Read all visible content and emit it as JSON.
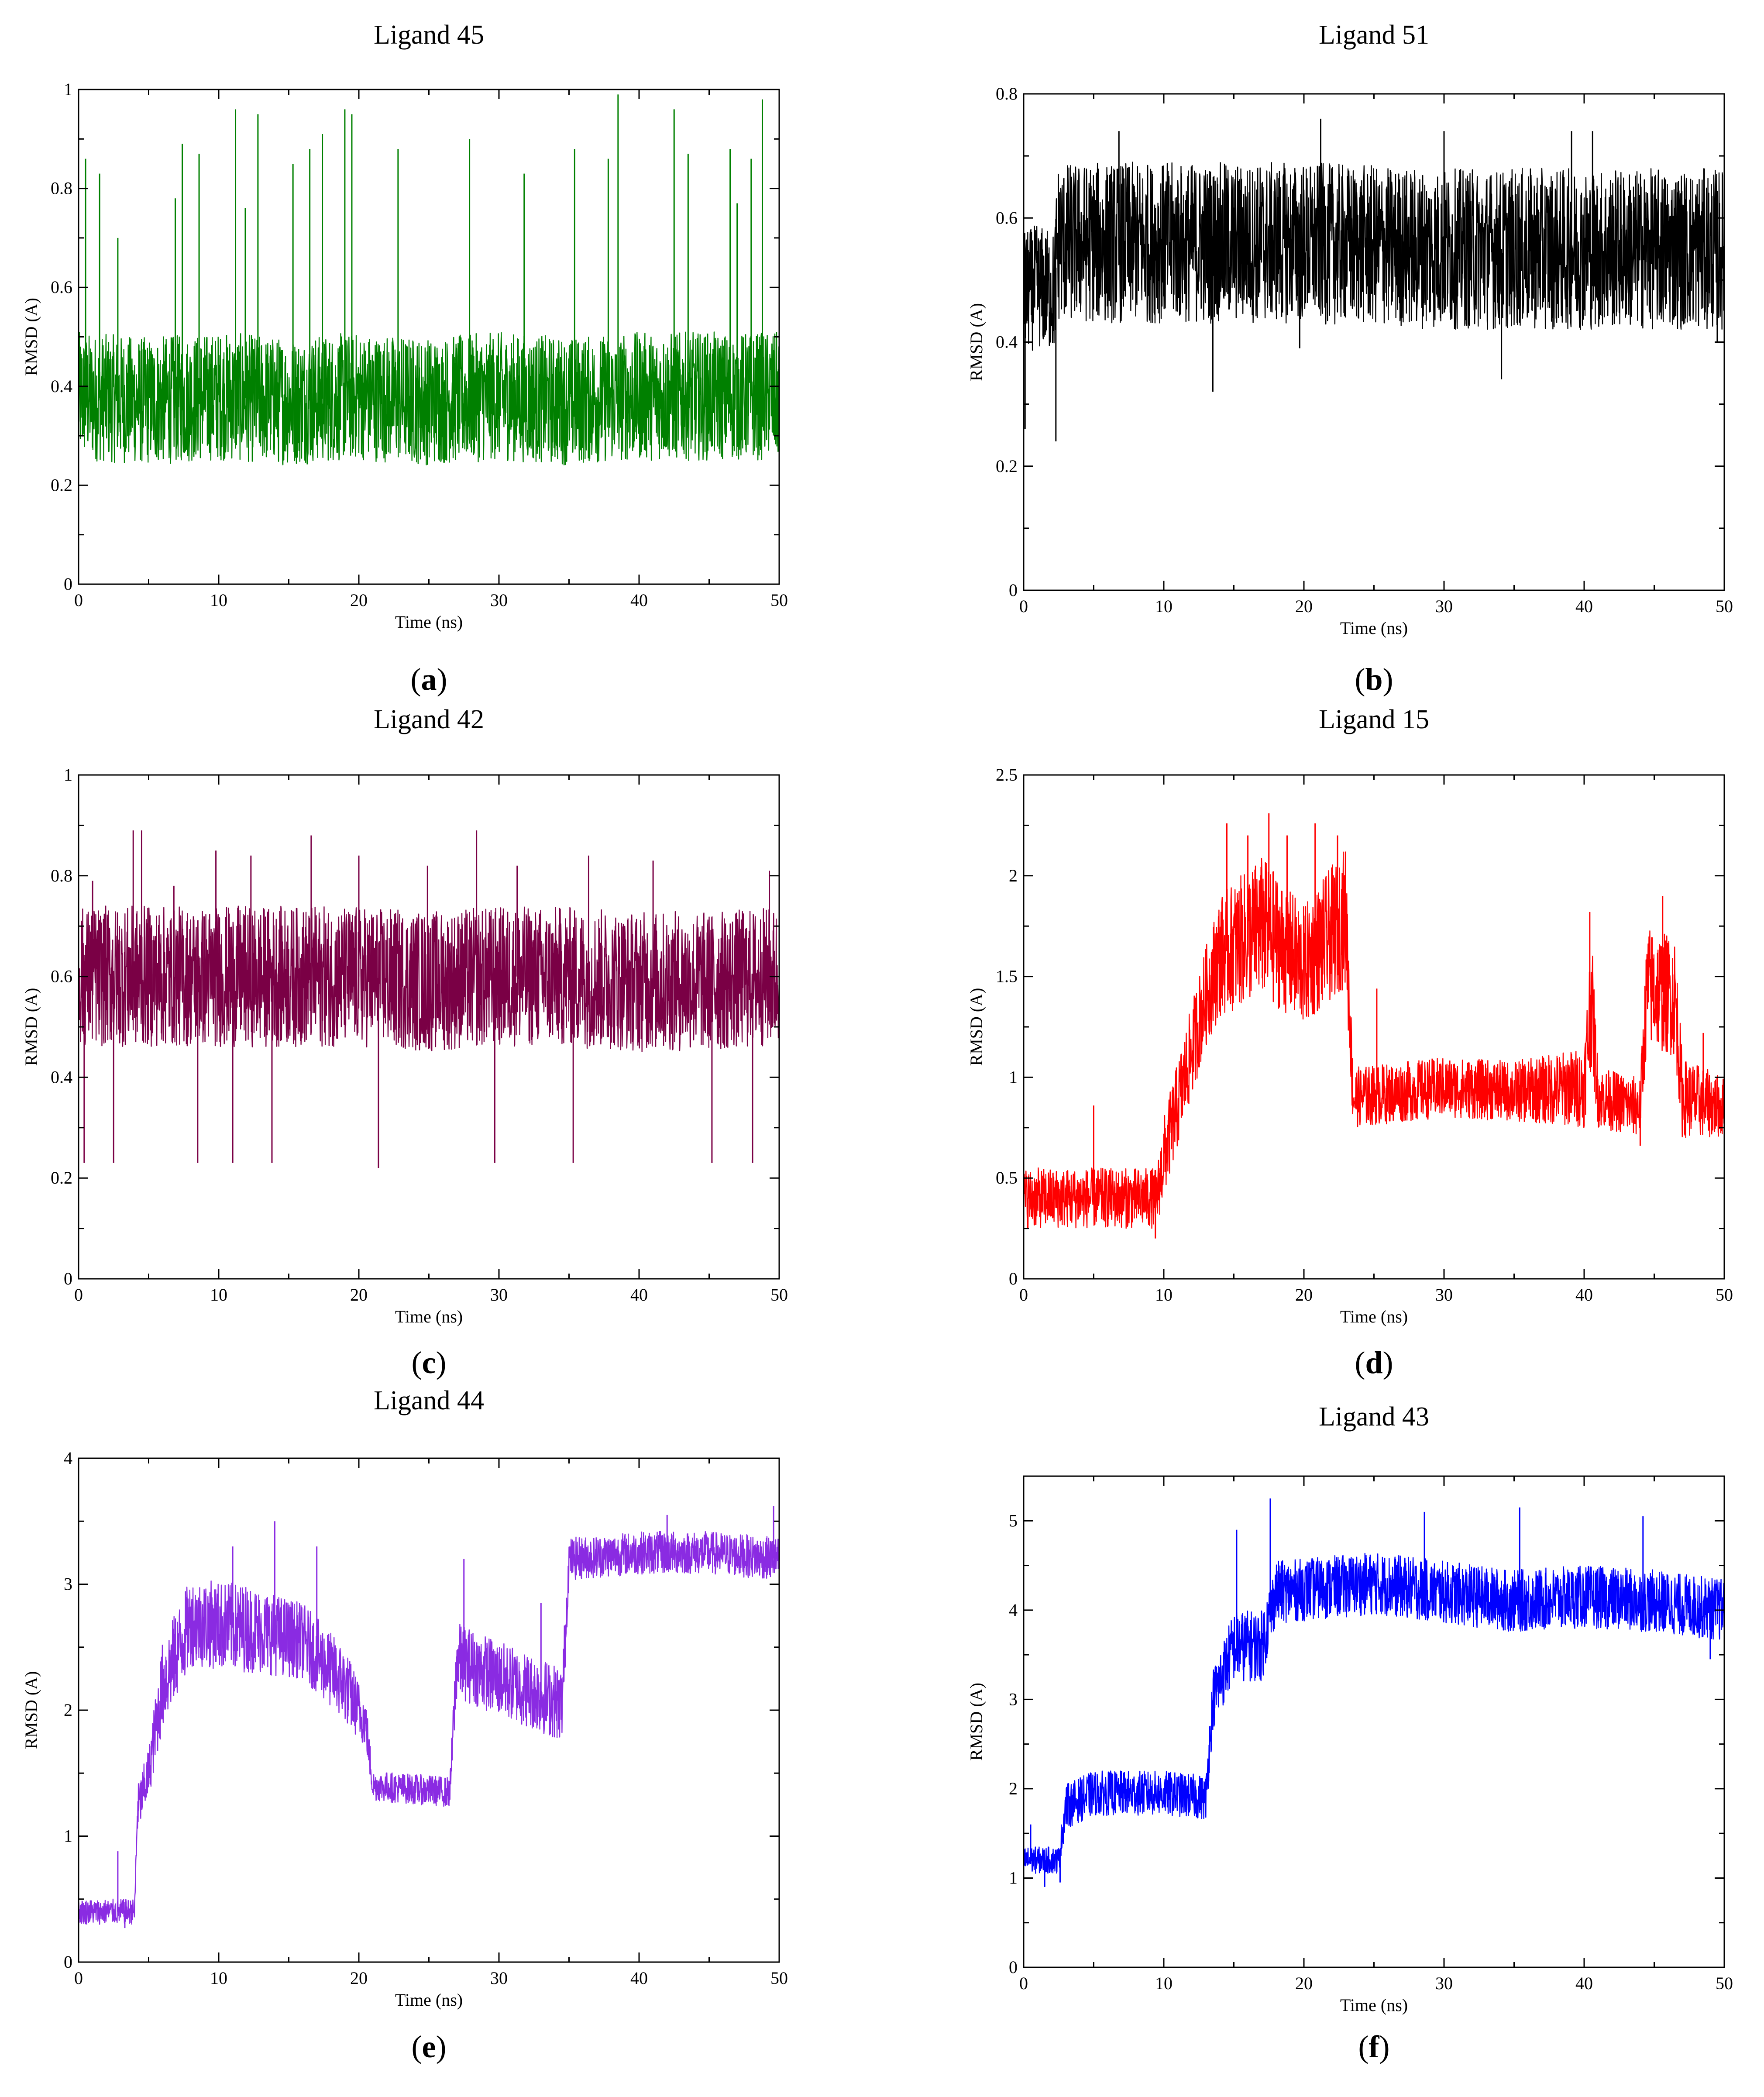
{
  "figure_captions": [
    "(a)",
    "(b)",
    "(c)",
    "(d)",
    "(e)",
    "(f)"
  ],
  "chart_data": [
    {
      "type": "line",
      "title": "Ligand 45",
      "caption_letter": "a",
      "xlabel": "Time (ns)",
      "ylabel": "RMSD (A)",
      "xlim": [
        0,
        50
      ],
      "ylim": [
        0,
        1
      ],
      "xticks": [
        0,
        10,
        20,
        30,
        40,
        50
      ],
      "yticks": [
        0,
        0.2,
        0.4,
        0.6,
        0.8,
        1
      ],
      "xticklabels": [
        "0",
        "10",
        "20",
        "30",
        "40",
        "50"
      ],
      "yticklabels": [
        "0",
        "0.2",
        "0.4",
        "0.6",
        "0.8",
        "1"
      ],
      "color": "#008000",
      "series": [
        {
          "x": [
            0,
            5,
            10,
            15,
            20,
            25,
            30,
            35,
            40,
            45,
            50
          ],
          "y": [
            0.38,
            0.37,
            0.38,
            0.37,
            0.38,
            0.37,
            0.38,
            0.37,
            0.38,
            0.38,
            0.38
          ],
          "spread": [
            0.13,
            0.13,
            0.13,
            0.13,
            0.13,
            0.13,
            0.13,
            0.13,
            0.13,
            0.13,
            0.13
          ]
        }
      ],
      "peak_x": [
        0.5,
        1.5,
        2.8,
        6.9,
        7.4,
        8.6,
        11.2,
        11.9,
        12.8,
        15.3,
        16.5,
        17.4,
        19.0,
        19.5,
        22.8,
        27.9,
        31.8,
        35.4,
        37.8,
        38.5,
        42.5,
        43.5,
        46.5,
        47.0,
        48.0,
        48.8
      ],
      "peak_y": [
        0.86,
        0.83,
        0.7,
        0.78,
        0.89,
        0.87,
        0.96,
        0.76,
        0.95,
        0.85,
        0.88,
        0.91,
        0.96,
        0.95,
        0.88,
        0.9,
        0.83,
        0.88,
        0.86,
        0.99,
        0.96,
        0.87,
        0.88,
        0.77,
        0.86,
        0.98
      ]
    },
    {
      "type": "line",
      "title": "Ligand 51",
      "caption_letter": "b",
      "xlabel": "Time (ns)",
      "ylabel": "RMSD (A)",
      "xlim": [
        0,
        50
      ],
      "ylim": [
        0,
        0.8
      ],
      "xticks": [
        0,
        10,
        20,
        30,
        40,
        50
      ],
      "yticks": [
        0,
        0.2,
        0.4,
        0.6,
        0.8
      ],
      "xticklabels": [
        "0",
        "10",
        "20",
        "30",
        "40",
        "50"
      ],
      "yticklabels": [
        "0",
        "0.2",
        "0.4",
        "0.6",
        "0.8"
      ],
      "color": "#000000",
      "series": [
        {
          "x": [
            0,
            1,
            2.2,
            2.4,
            10,
            20,
            30,
            40,
            50
          ],
          "y": [
            0.48,
            0.49,
            0.48,
            0.56,
            0.56,
            0.56,
            0.55,
            0.55,
            0.55
          ],
          "spread": [
            0.1,
            0.1,
            0.1,
            0.13,
            0.13,
            0.13,
            0.13,
            0.13,
            0.13
          ]
        }
      ],
      "peak_x": [
        0.1,
        2.3,
        6.8,
        13.5,
        19.7,
        21.2,
        30.0,
        34.1,
        39.1,
        40.6,
        49.5
      ],
      "peak_y": [
        0.26,
        0.24,
        0.74,
        0.32,
        0.39,
        0.76,
        0.74,
        0.34,
        0.74,
        0.74,
        0.4
      ]
    },
    {
      "type": "line",
      "title": "Ligand 42",
      "caption_letter": "c",
      "xlabel": "Time (ns)",
      "ylabel": "RMSD (A)",
      "xlim": [
        0,
        50
      ],
      "ylim": [
        0,
        1
      ],
      "xticks": [
        0,
        10,
        20,
        30,
        40,
        50
      ],
      "yticks": [
        0,
        0.2,
        0.4,
        0.6,
        0.8,
        1
      ],
      "xticklabels": [
        "0",
        "10",
        "20",
        "30",
        "40",
        "50"
      ],
      "yticklabels": [
        "0",
        "0.2",
        "0.4",
        "0.6",
        "0.8",
        "1"
      ],
      "color": "#7a0045",
      "series": [
        {
          "x": [
            0,
            5,
            10,
            15,
            20,
            25,
            30,
            35,
            40,
            45,
            50
          ],
          "y": [
            0.6,
            0.6,
            0.6,
            0.6,
            0.6,
            0.59,
            0.6,
            0.6,
            0.59,
            0.59,
            0.6
          ],
          "spread": [
            0.14,
            0.14,
            0.14,
            0.14,
            0.14,
            0.14,
            0.14,
            0.14,
            0.14,
            0.14,
            0.14
          ]
        }
      ],
      "peak_x": [
        0.4,
        1.0,
        2.5,
        3.9,
        4.5,
        6.8,
        8.5,
        9.8,
        11.0,
        12.3,
        13.8,
        16.6,
        20.0,
        21.4,
        24.9,
        28.4,
        29.7,
        31.3,
        35.3,
        36.4,
        41.0,
        45.2,
        48.1,
        49.3
      ],
      "peak_y": [
        0.23,
        0.79,
        0.23,
        0.89,
        0.89,
        0.78,
        0.23,
        0.85,
        0.23,
        0.84,
        0.23,
        0.88,
        0.84,
        0.22,
        0.82,
        0.89,
        0.23,
        0.82,
        0.23,
        0.84,
        0.83,
        0.23,
        0.23,
        0.81
      ]
    },
    {
      "type": "line",
      "title": "Ligand 15",
      "caption_letter": "d",
      "xlabel": "Time (ns)",
      "ylabel": "RMSD (A)",
      "xlim": [
        0,
        50
      ],
      "ylim": [
        0,
        2.5
      ],
      "xticks": [
        0,
        10,
        20,
        30,
        40,
        50
      ],
      "yticks": [
        0,
        0.5,
        1,
        1.5,
        2,
        2.5
      ],
      "xticklabels": [
        "0",
        "10",
        "20",
        "30",
        "40",
        "50"
      ],
      "yticklabels": [
        "0",
        "0.5",
        "1",
        "1.5",
        "2",
        "2.5"
      ],
      "color": "#ff0000",
      "series": [
        {
          "x": [
            0,
            4,
            9.5,
            10,
            13,
            14,
            17,
            20,
            23,
            23.5,
            30,
            35,
            40,
            40.5,
            41,
            44,
            44.5,
            46.5,
            47,
            50
          ],
          "y": [
            0.4,
            0.4,
            0.4,
            0.6,
            1.4,
            1.6,
            1.75,
            1.55,
            1.8,
            0.9,
            0.95,
            0.93,
            0.95,
            1.4,
            0.9,
            0.85,
            1.45,
            1.4,
            0.9,
            0.85
          ],
          "spread": [
            0.15,
            0.15,
            0.15,
            0.2,
            0.25,
            0.3,
            0.35,
            0.3,
            0.35,
            0.15,
            0.15,
            0.15,
            0.2,
            0.35,
            0.15,
            0.15,
            0.3,
            0.3,
            0.2,
            0.15
          ]
        }
      ],
      "peak_x": [
        5.0,
        9.4,
        14.5,
        16.0,
        17.5,
        18.8,
        20.8,
        22.4,
        25.2,
        40.4,
        44.0,
        45.6,
        48.5
      ],
      "peak_y": [
        0.86,
        0.2,
        2.26,
        2.2,
        2.31,
        2.2,
        2.26,
        2.2,
        1.44,
        1.82,
        0.66,
        1.9,
        1.22
      ]
    },
    {
      "type": "line",
      "title": "Ligand 44",
      "caption_letter": "e",
      "xlabel": "Time (ns)",
      "ylabel": "RMSD (A)",
      "xlim": [
        0,
        50
      ],
      "ylim": [
        0,
        4
      ],
      "xticks": [
        0,
        10,
        20,
        30,
        40,
        50
      ],
      "yticks": [
        0,
        1,
        2,
        3,
        4
      ],
      "xticklabels": [
        "0",
        "10",
        "20",
        "30",
        "40",
        "50"
      ],
      "yticklabels": [
        "0",
        "1",
        "2",
        "3",
        "4"
      ],
      "color": "#8a2be2",
      "series": [
        {
          "x": [
            0,
            4,
            4.2,
            5,
            6,
            8,
            12,
            16,
            19,
            20.5,
            21,
            26.5,
            27,
            30,
            34.5,
            35,
            40,
            45,
            50
          ],
          "y": [
            0.4,
            0.4,
            1.2,
            1.5,
            2.2,
            2.7,
            2.65,
            2.55,
            2.2,
            1.9,
            1.4,
            1.35,
            2.4,
            2.25,
            2.05,
            3.2,
            3.25,
            3.25,
            3.2
          ],
          "spread": [
            0.1,
            0.1,
            0.2,
            0.2,
            0.35,
            0.35,
            0.35,
            0.3,
            0.3,
            0.2,
            0.12,
            0.12,
            0.3,
            0.3,
            0.3,
            0.17,
            0.17,
            0.17,
            0.17
          ]
        }
      ],
      "peak_x": [
        2.8,
        3.3,
        11.0,
        14.0,
        17.0,
        27.5,
        33.0,
        42.0,
        49.6
      ],
      "peak_y": [
        0.88,
        0.27,
        3.3,
        3.5,
        3.3,
        3.2,
        2.85,
        3.55,
        3.62
      ]
    },
    {
      "type": "line",
      "title": "Ligand 43",
      "caption_letter": "f",
      "xlabel": "Time (ns)",
      "ylabel": "RMSD (A)",
      "xlim": [
        0,
        50
      ],
      "ylim": [
        0,
        5.5
      ],
      "xticks": [
        0,
        10,
        20,
        30,
        40,
        50
      ],
      "yticks": [
        0,
        1,
        2,
        3,
        4,
        5
      ],
      "xticklabels": [
        "0",
        "10",
        "20",
        "30",
        "40",
        "50"
      ],
      "yticklabels": [
        "0",
        "1",
        "2",
        "3",
        "4",
        "5"
      ],
      "color": "#0000ff",
      "series": [
        {
          "x": [
            0,
            2.5,
            3,
            5,
            10,
            13,
            13.5,
            15,
            17,
            18,
            25,
            30,
            35,
            40,
            45,
            50
          ],
          "y": [
            1.2,
            1.2,
            1.8,
            1.95,
            1.95,
            1.9,
            3.0,
            3.6,
            3.6,
            4.2,
            4.3,
            4.2,
            4.1,
            4.15,
            4.1,
            4.0
          ],
          "spread": [
            0.15,
            0.15,
            0.25,
            0.25,
            0.25,
            0.25,
            0.35,
            0.4,
            0.4,
            0.35,
            0.35,
            0.35,
            0.35,
            0.35,
            0.35,
            0.35
          ]
        }
      ],
      "peak_x": [
        0.5,
        1.5,
        2.6,
        15.2,
        17.6,
        28.6,
        35.4,
        44.2,
        49.0
      ],
      "peak_y": [
        1.6,
        0.9,
        0.95,
        4.9,
        5.25,
        5.1,
        5.15,
        5.05,
        3.45
      ]
    }
  ]
}
